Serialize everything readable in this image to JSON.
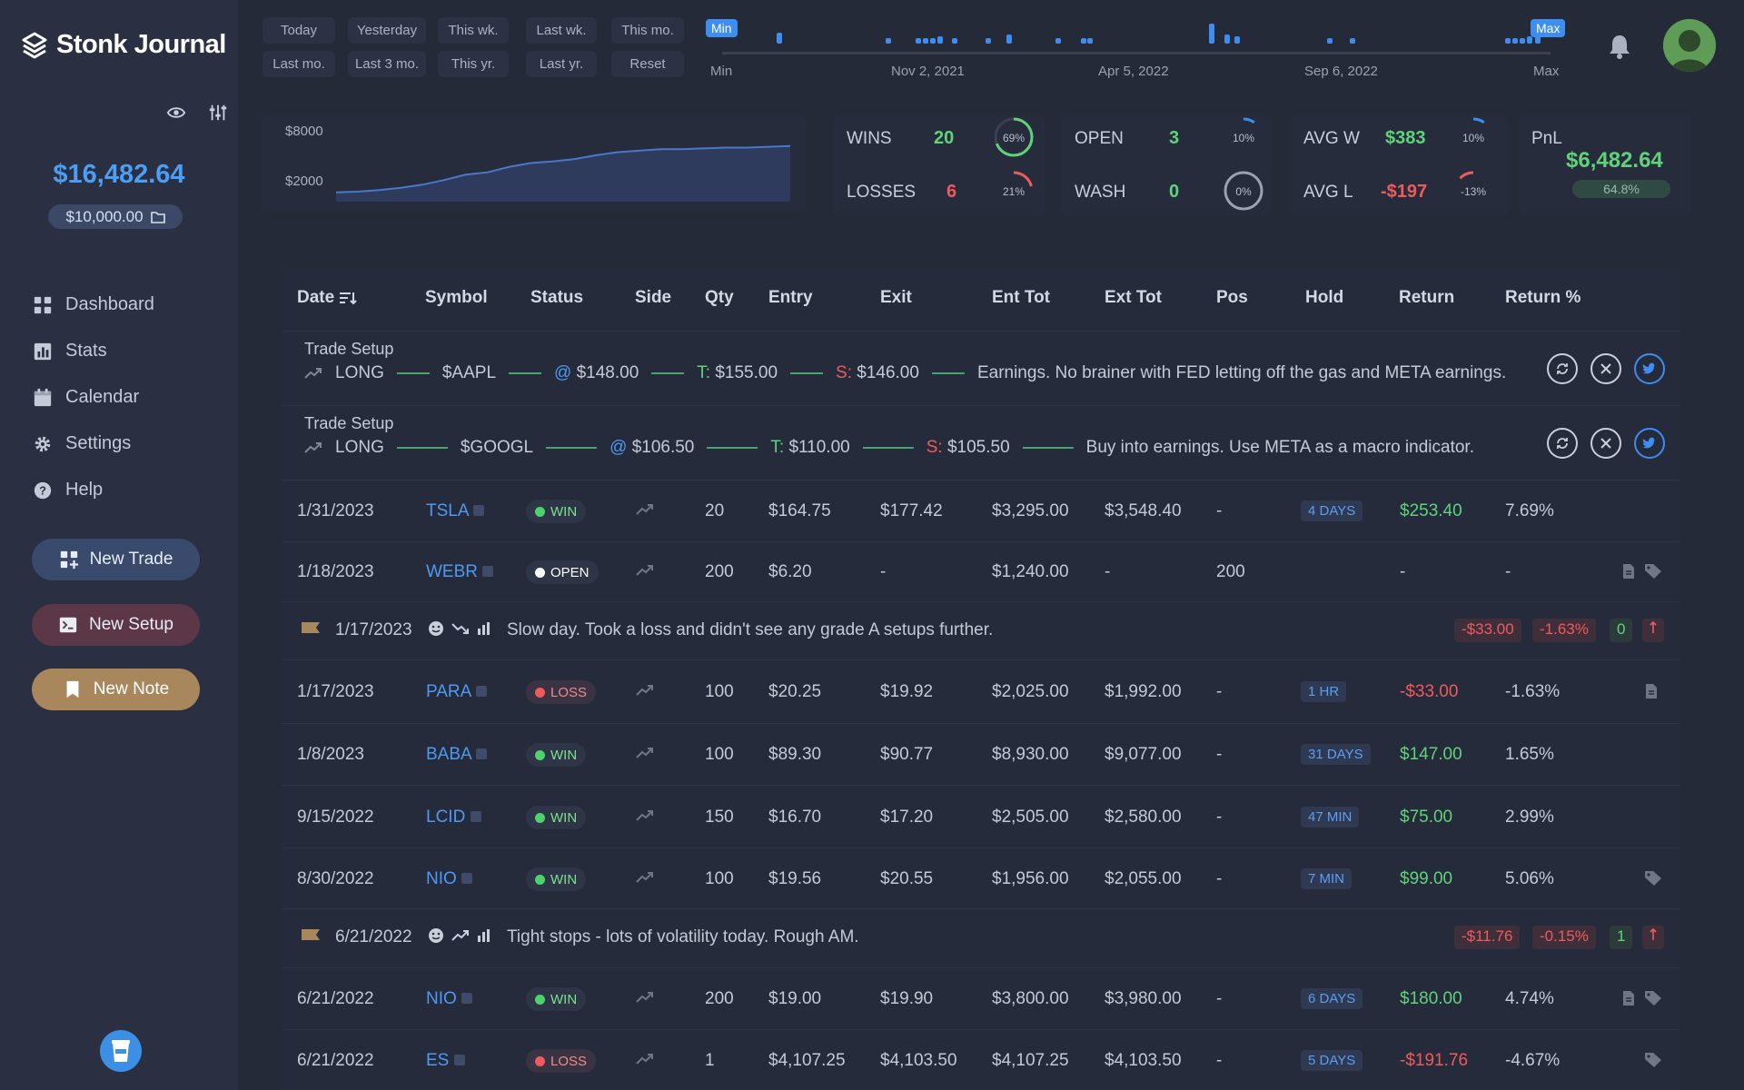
{
  "app": {
    "name": "Stonk Journal"
  },
  "sidebar": {
    "balance": "$16,482.64",
    "deposit": "$10,000.00",
    "nav": [
      {
        "label": "Dashboard",
        "icon": "grid-icon"
      },
      {
        "label": "Stats",
        "icon": "bar-chart-icon"
      },
      {
        "label": "Calendar",
        "icon": "calendar-icon"
      },
      {
        "label": "Settings",
        "icon": "gear-icon"
      },
      {
        "label": "Help",
        "icon": "help-icon"
      }
    ],
    "new_trade": "New Trade",
    "new_setup": "New Setup",
    "new_note": "New Note"
  },
  "date_filters": {
    "row1": [
      "Today",
      "Yesterday",
      "This wk.",
      "Last wk.",
      "This mo."
    ],
    "row2": [
      "Last mo.",
      "Last 3 mo.",
      "This yr.",
      "Last yr.",
      "Reset"
    ]
  },
  "timeline": {
    "min_flag": "Min",
    "max_flag": "Max",
    "min_label": "Min",
    "max_label": "Max",
    "dates": [
      "Nov 2, 2021",
      "Apr 5, 2022",
      "Sep 6, 2022"
    ]
  },
  "equity_chart": {
    "y_ticks": [
      "$8000",
      "$2000"
    ],
    "values": [
      0.12,
      0.13,
      0.15,
      0.18,
      0.22,
      0.28,
      0.35,
      0.38,
      0.45,
      0.5,
      0.52,
      0.55,
      0.6,
      0.64,
      0.66,
      0.68,
      0.68,
      0.69,
      0.7,
      0.7,
      0.71,
      0.72
    ]
  },
  "stats": {
    "wins_label": "WINS",
    "wins": "20",
    "wins_pct": "69%",
    "wins_pct_value": 69,
    "losses_label": "LOSSES",
    "losses": "6",
    "losses_pct": "21%",
    "losses_pct_value": 21,
    "open_label": "OPEN",
    "open": "3",
    "open_pct": "10%",
    "open_pct_value": 10,
    "wash_label": "WASH",
    "wash": "0",
    "wash_pct": "0%",
    "wash_pct_value": 0,
    "avgw_label": "AVG W",
    "avgw": "$383",
    "avgw_pct": "10%",
    "avgw_pct_value": 10,
    "avgl_label": "AVG L",
    "avgl": "-$197",
    "avgl_pct": "-13%",
    "avgl_pct_value": 13,
    "pnl_label": "PnL",
    "pnl": "$6,482.64",
    "pnl_pct": "64.8%"
  },
  "colors": {
    "accent": "#3d8ef0",
    "win": "#5fd37a",
    "loss": "#ef5b5b"
  },
  "table": {
    "headers": [
      "Date",
      "Symbol",
      "Status",
      "Side",
      "Qty",
      "Entry",
      "Exit",
      "Ent Tot",
      "Ext Tot",
      "Pos",
      "Hold",
      "Return",
      "Return %"
    ],
    "setups": [
      {
        "title": "Trade Setup",
        "side": "LONG",
        "symbol": "$AAPL",
        "entry": "$148.00",
        "target": "$155.00",
        "stop": "$146.00",
        "note": "Earnings. No brainer with FED letting off the gas and META earnings."
      },
      {
        "title": "Trade Setup",
        "side": "LONG",
        "symbol": "$GOOGL",
        "entry": "$106.50",
        "target": "$110.00",
        "stop": "$105.50",
        "note": "Buy into earnings. Use META as a macro indicator."
      }
    ],
    "setup_prefix": {
      "at": "@",
      "target": "T:",
      "stop": "S:"
    },
    "rows": [
      {
        "kind": "trade",
        "date": "1/31/2023",
        "symbol": "TSLA",
        "status": "WIN",
        "qty": "20",
        "entry": "$164.75",
        "exit": "$177.42",
        "ent_tot": "$3,295.00",
        "ext_tot": "$3,548.40",
        "pos": "-",
        "hold": "4 DAYS",
        "ret": "$253.40",
        "ret_pct": "7.69%",
        "tone": "green"
      },
      {
        "kind": "trade",
        "date": "1/18/2023",
        "symbol": "WEBR",
        "status": "OPEN",
        "qty": "200",
        "entry": "$6.20",
        "exit": "-",
        "ent_tot": "$1,240.00",
        "ext_tot": "-",
        "pos": "200",
        "hold": "",
        "ret": "-",
        "ret_pct": "-",
        "tone": "neutral"
      },
      {
        "kind": "note",
        "date": "1/17/2023",
        "text": "Slow day. Took a loss and didn't see any grade A setups further.",
        "ret": "-$33.00",
        "ret_pct": "-1.63%",
        "count": "0"
      },
      {
        "kind": "trade",
        "date": "1/17/2023",
        "symbol": "PARA",
        "status": "LOSS",
        "qty": "100",
        "entry": "$20.25",
        "exit": "$19.92",
        "ent_tot": "$2,025.00",
        "ext_tot": "$1,992.00",
        "pos": "-",
        "hold": "1 HR",
        "ret": "-$33.00",
        "ret_pct": "-1.63%",
        "tone": "red"
      },
      {
        "kind": "trade",
        "date": "1/8/2023",
        "symbol": "BABA",
        "status": "WIN",
        "qty": "100",
        "entry": "$89.30",
        "exit": "$90.77",
        "ent_tot": "$8,930.00",
        "ext_tot": "$9,077.00",
        "pos": "-",
        "hold": "31 DAYS",
        "ret": "$147.00",
        "ret_pct": "1.65%",
        "tone": "green"
      },
      {
        "kind": "trade",
        "date": "9/15/2022",
        "symbol": "LCID",
        "status": "WIN",
        "qty": "150",
        "entry": "$16.70",
        "exit": "$17.20",
        "ent_tot": "$2,505.00",
        "ext_tot": "$2,580.00",
        "pos": "-",
        "hold": "47 MIN",
        "ret": "$75.00",
        "ret_pct": "2.99%",
        "tone": "green"
      },
      {
        "kind": "trade",
        "date": "8/30/2022",
        "symbol": "NIO",
        "status": "WIN",
        "qty": "100",
        "entry": "$19.56",
        "exit": "$20.55",
        "ent_tot": "$1,956.00",
        "ext_tot": "$2,055.00",
        "pos": "-",
        "hold": "7 MIN",
        "ret": "$99.00",
        "ret_pct": "5.06%",
        "tone": "green"
      },
      {
        "kind": "note",
        "date": "6/21/2022",
        "text": "Tight stops - lots of volatility today. Rough AM.",
        "ret": "-$11.76",
        "ret_pct": "-0.15%",
        "count": "1"
      },
      {
        "kind": "trade",
        "date": "6/21/2022",
        "symbol": "NIO",
        "status": "WIN",
        "qty": "200",
        "entry": "$19.00",
        "exit": "$19.90",
        "ent_tot": "$3,800.00",
        "ext_tot": "$3,980.00",
        "pos": "-",
        "hold": "6 DAYS",
        "ret": "$180.00",
        "ret_pct": "4.74%",
        "tone": "green"
      },
      {
        "kind": "trade",
        "date": "6/21/2022",
        "symbol": "ES",
        "status": "LOSS",
        "qty": "1",
        "entry": "$4,107.25",
        "exit": "$4,103.50",
        "ent_tot": "$4,107.25",
        "ext_tot": "$4,103.50",
        "pos": "-",
        "hold": "5 DAYS",
        "ret": "-$191.76",
        "ret_pct": "-4.67%",
        "tone": "red"
      }
    ]
  }
}
